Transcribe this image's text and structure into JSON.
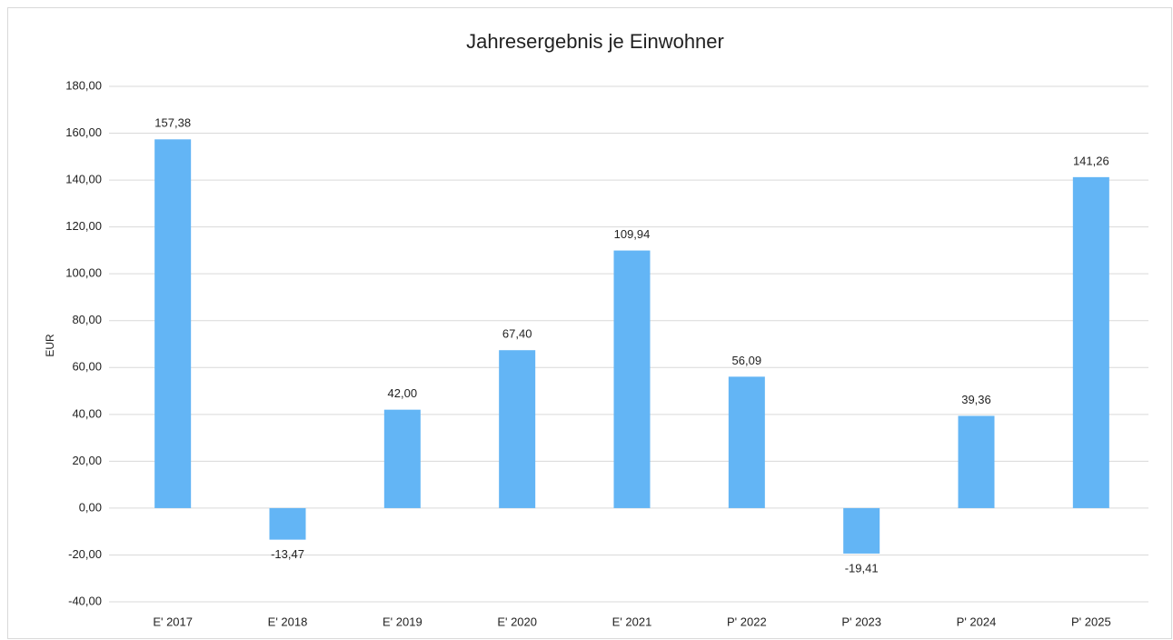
{
  "chart_data": {
    "type": "bar",
    "title": "Jahresergebnis je Einwohner",
    "y_label": "EUR",
    "categories": [
      "E' 2017",
      "E' 2018",
      "E' 2019",
      "E' 2020",
      "E' 2021",
      "P' 2022",
      "P' 2023",
      "P' 2024",
      "P' 2025"
    ],
    "values": [
      157.38,
      -13.47,
      42.0,
      67.4,
      109.94,
      56.09,
      -19.41,
      39.36,
      141.26
    ],
    "value_labels": [
      "157,38",
      "-13,47",
      "42,00",
      "67,40",
      "109,94",
      "56,09",
      "-19,41",
      "39,36",
      "141,26"
    ],
    "color": "#63b5f5",
    "ylim": [
      -40,
      180
    ],
    "yticks": [
      {
        "value": -40,
        "label": "-40,00"
      },
      {
        "value": -20,
        "label": "-20,00"
      },
      {
        "value": 0,
        "label": "0,00"
      },
      {
        "value": 20,
        "label": "20,00"
      },
      {
        "value": 40,
        "label": "40,00"
      },
      {
        "value": 60,
        "label": "60,00"
      },
      {
        "value": 80,
        "label": "80,00"
      },
      {
        "value": 100,
        "label": "100,00"
      },
      {
        "value": 120,
        "label": "120,00"
      },
      {
        "value": 140,
        "label": "140,00"
      },
      {
        "value": 160,
        "label": "160,00"
      },
      {
        "value": 180,
        "label": "180,00"
      }
    ],
    "grid": true
  }
}
